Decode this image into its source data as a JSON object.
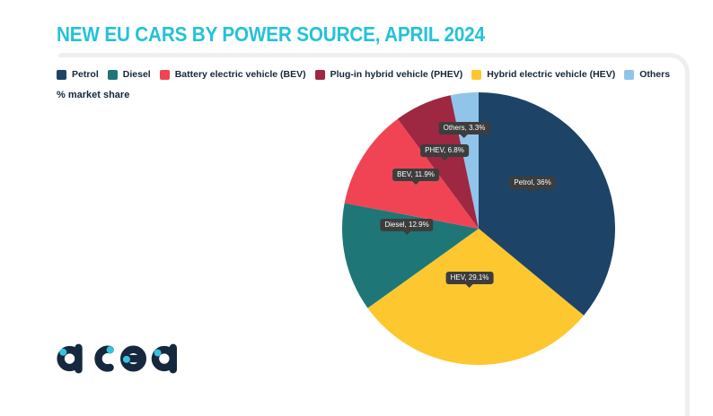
{
  "title": "NEW EU CARS BY POWER SOURCE, APRIL 2024",
  "subtitle": "% market share",
  "logo_text": "acea",
  "colors": {
    "title": "#24c2da",
    "text": "#14273a",
    "card_border": "#efefef",
    "callout_bg": "#3d3d3d",
    "callout_text": "#ffffff",
    "logo_navy": "#16283e",
    "logo_cyan": "#35c4e0"
  },
  "legend": {
    "items": [
      {
        "label": "Petrol",
        "color": "#1d4466"
      },
      {
        "label": "Diesel",
        "color": "#1e7776"
      },
      {
        "label": "Battery electric vehicle (BEV)",
        "color": "#f04455"
      },
      {
        "label": "Plug-in hybrid vehicle (PHEV)",
        "color": "#9e2742"
      },
      {
        "label": "Hybrid electric vehicle (HEV)",
        "color": "#fdc72f"
      },
      {
        "label": "Others",
        "color": "#90c4e9"
      }
    ]
  },
  "chart_data": {
    "type": "pie",
    "title": "NEW EU CARS BY POWER SOURCE, APRIL 2024",
    "unit": "% market share",
    "start_angle_deg": 0,
    "direction": "clockwise",
    "slices": [
      {
        "label": "Petrol",
        "legend_label": "Petrol",
        "value": 36,
        "color": "#1d4466",
        "callout": "Petrol, 36%"
      },
      {
        "label": "HEV",
        "legend_label": "Hybrid electric vehicle (HEV)",
        "value": 29.1,
        "color": "#fdc72f",
        "callout": "HEV, 29.1%"
      },
      {
        "label": "Diesel",
        "legend_label": "Diesel",
        "value": 12.9,
        "color": "#1e7776",
        "callout": "Diesel, 12.9%"
      },
      {
        "label": "BEV",
        "legend_label": "Battery electric vehicle (BEV)",
        "value": 11.9,
        "color": "#f04455",
        "callout": "BEV, 11.9%"
      },
      {
        "label": "PHEV",
        "legend_label": "Plug-in hybrid vehicle (PHEV)",
        "value": 6.8,
        "color": "#9e2742",
        "callout": "PHEV, 6.8%"
      },
      {
        "label": "Others",
        "legend_label": "Others",
        "value": 3.3,
        "color": "#90c4e9",
        "callout": "Others, 3.3%"
      }
    ]
  }
}
